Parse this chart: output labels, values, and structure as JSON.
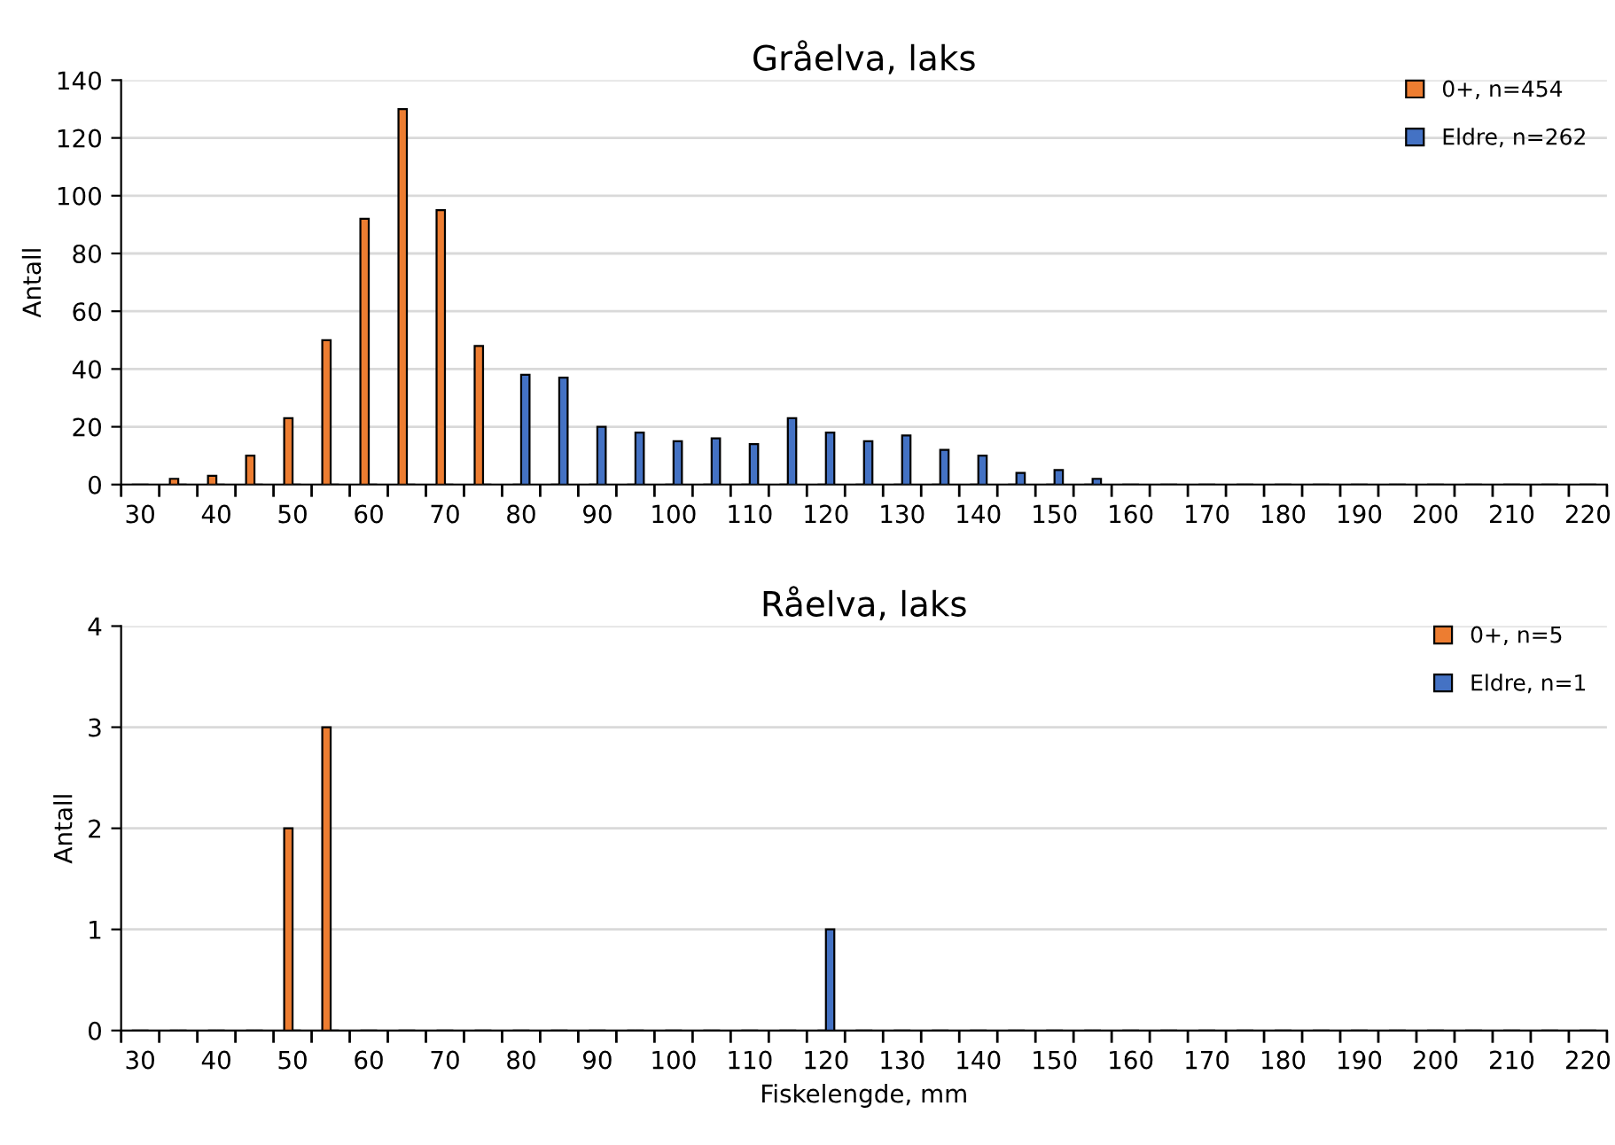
{
  "chart_data": [
    {
      "type": "bar",
      "title": "Gråelva, laks",
      "ylabel": "Antall",
      "categories": [
        "30",
        null,
        "40",
        null,
        "50",
        null,
        "60",
        null,
        "70",
        null,
        "80",
        null,
        "90",
        null,
        "100",
        null,
        "110",
        null,
        "120",
        null,
        "130",
        null,
        "140",
        null,
        "150",
        null,
        "160",
        null,
        "170",
        null,
        "180",
        null,
        "190",
        null,
        "200",
        null,
        "210",
        null,
        "220"
      ],
      "series": [
        {
          "name": "0+, n=454",
          "color": "#ed7d31",
          "values": [
            0,
            2,
            3,
            10,
            23,
            50,
            92,
            130,
            95,
            48,
            0,
            0,
            0,
            0,
            0,
            0,
            0,
            0,
            0,
            0,
            0,
            0,
            0,
            0,
            0,
            0,
            0,
            0,
            0,
            0,
            0,
            0,
            0,
            0,
            0,
            0,
            0,
            0,
            0
          ]
        },
        {
          "name": "Eldre, n=262",
          "color": "#4472c4",
          "values": [
            0,
            0,
            0,
            0,
            0,
            0,
            0,
            0,
            0,
            0,
            38,
            37,
            20,
            18,
            15,
            16,
            14,
            23,
            18,
            15,
            17,
            12,
            10,
            4,
            5,
            2,
            0,
            0,
            0,
            0,
            0,
            0,
            0,
            0,
            0,
            0,
            0,
            0,
            0
          ]
        }
      ],
      "ylim": [
        0,
        140
      ],
      "yticks": [
        0,
        20,
        40,
        60,
        80,
        100,
        120,
        140
      ],
      "grid": "y",
      "legend": "top right"
    },
    {
      "type": "bar",
      "title": "Råelva, laks",
      "ylabel": "Antall",
      "xlabel": "Fiskelengde, mm",
      "categories": [
        "30",
        null,
        "40",
        null,
        "50",
        null,
        "60",
        null,
        "70",
        null,
        "80",
        null,
        "90",
        null,
        "100",
        null,
        "110",
        null,
        "120",
        null,
        "130",
        null,
        "140",
        null,
        "150",
        null,
        "160",
        null,
        "170",
        null,
        "180",
        null,
        "190",
        null,
        "200",
        null,
        "210",
        null,
        "220"
      ],
      "series": [
        {
          "name": "0+, n=5",
          "color": "#ed7d31",
          "values": [
            0,
            0,
            0,
            0,
            2,
            3,
            0,
            0,
            0,
            0,
            0,
            0,
            0,
            0,
            0,
            0,
            0,
            0,
            0,
            0,
            0,
            0,
            0,
            0,
            0,
            0,
            0,
            0,
            0,
            0,
            0,
            0,
            0,
            0,
            0,
            0,
            0,
            0,
            0
          ]
        },
        {
          "name": "Eldre, n=1",
          "color": "#4472c4",
          "values": [
            0,
            0,
            0,
            0,
            0,
            0,
            0,
            0,
            0,
            0,
            0,
            0,
            0,
            0,
            0,
            0,
            0,
            0,
            1,
            0,
            0,
            0,
            0,
            0,
            0,
            0,
            0,
            0,
            0,
            0,
            0,
            0,
            0,
            0,
            0,
            0,
            0,
            0,
            0
          ]
        }
      ],
      "ylim": [
        0,
        4
      ],
      "yticks": [
        0,
        1,
        2,
        3,
        4
      ],
      "grid": "y",
      "legend": "top right"
    }
  ]
}
